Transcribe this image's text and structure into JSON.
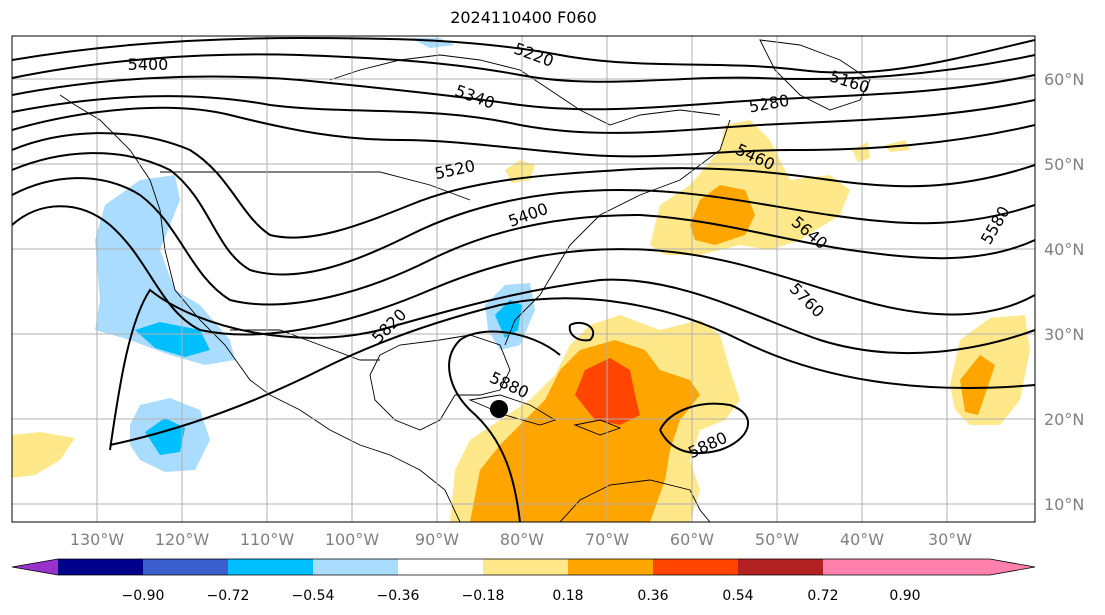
{
  "title": "2024110400 F060",
  "lon_labels": [
    "130°W",
    "120°W",
    "110°W",
    "100°W",
    "90°W",
    "80°W",
    "70°W",
    "60°W",
    "50°W",
    "40°W",
    "30°W"
  ],
  "lat_labels": [
    "60°N",
    "50°N",
    "40°N",
    "30°N",
    "20°N",
    "10°N"
  ],
  "contour_labels": [
    "5400",
    "5220",
    "5160",
    "5340",
    "5280",
    "5520",
    "5460",
    "5400",
    "5640",
    "5580",
    "5760",
    "5820",
    "5880",
    "5880"
  ],
  "colorbar": {
    "ticks": [
      "−0.90",
      "−0.72",
      "−0.54",
      "−0.36",
      "−0.18",
      "0.18",
      "0.36",
      "0.54",
      "0.72",
      "0.90"
    ],
    "colors": [
      "#9932cc",
      "#00008b",
      "#3a5fcd",
      "#00bfff",
      "#aadcff",
      "#ffffff",
      "#ffe88a",
      "#ffa500",
      "#ff4500",
      "#b22222",
      "#ff80ab"
    ]
  },
  "marker": "storm-center"
}
